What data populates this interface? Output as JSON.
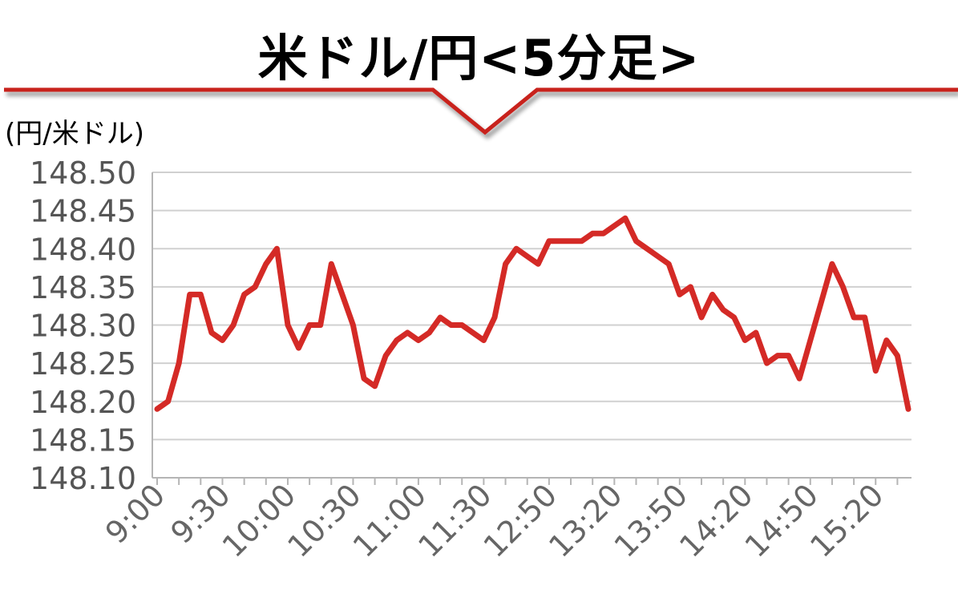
{
  "chart_data": {
    "type": "line",
    "title": "米ドル/円<5分足>",
    "ylabel": "(円/米ドル)",
    "xlabel": "",
    "ylim": [
      148.1,
      148.5
    ],
    "yticks": [
      "148.50",
      "148.45",
      "148.40",
      "148.35",
      "148.30",
      "148.25",
      "148.20",
      "148.15",
      "148.10"
    ],
    "xtick_labels": [
      "9:00",
      "9:30",
      "10:00",
      "10:30",
      "11:00",
      "11:30",
      "12:50",
      "13:20",
      "13:50",
      "14:20",
      "14:50",
      "15:20"
    ],
    "grid": true,
    "color": "#d42a26",
    "series": [
      {
        "values": [
          148.19,
          148.2,
          148.25,
          148.34,
          148.34,
          148.29,
          148.28,
          148.3,
          148.34,
          148.35,
          148.38,
          148.4,
          148.3,
          148.27,
          148.3,
          148.3,
          148.38,
          148.34,
          148.3,
          148.23,
          148.22,
          148.26,
          148.28,
          148.29,
          148.28,
          148.29,
          148.31,
          148.3,
          148.3,
          148.29,
          148.28,
          148.31,
          148.38,
          148.4,
          148.39,
          148.38,
          148.41,
          148.41,
          148.41,
          148.41,
          148.42,
          148.42,
          148.43,
          148.44,
          148.41,
          148.4,
          148.39,
          148.38,
          148.34,
          148.35,
          148.31,
          148.34,
          148.32,
          148.31,
          148.28,
          148.29,
          148.25,
          148.26,
          148.26,
          148.23,
          148.28,
          148.33,
          148.38,
          148.35,
          148.31,
          148.31,
          148.24,
          148.28,
          148.26,
          148.19
        ]
      }
    ]
  }
}
